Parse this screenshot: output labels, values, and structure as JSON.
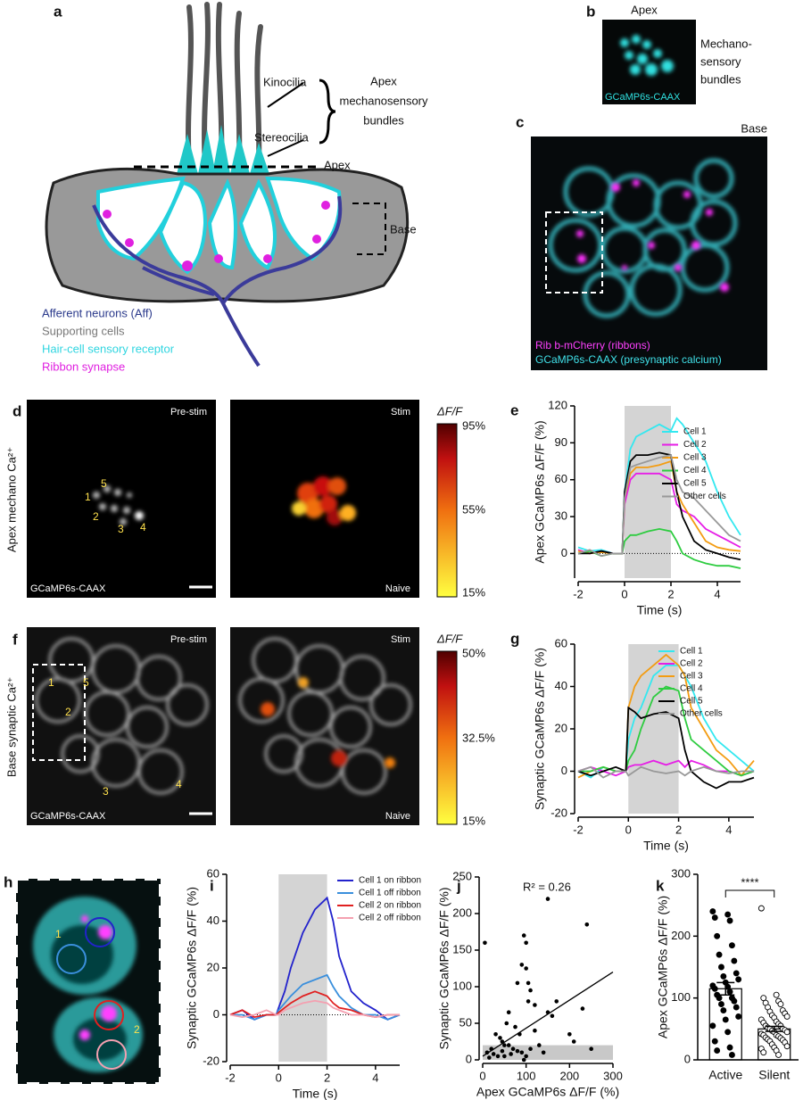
{
  "panels": {
    "a": {
      "label": "a",
      "kinocilia": "Kinocilia",
      "stereocilia": "Stereocilia",
      "bundles": [
        "Apex",
        "mechanosensory",
        "bundles"
      ],
      "apex": "Apex",
      "base": "Base",
      "legend": [
        "Afferent neurons (Aff)",
        "Supporting cells",
        "Hair-cell sensory receptor",
        "Ribbon synapse"
      ]
    },
    "b": {
      "label": "b",
      "apex": "Apex",
      "bundles": [
        "Mechano-",
        "sensory",
        "bundles"
      ],
      "stain": "GCaMP6s-CAAX"
    },
    "c": {
      "label": "c",
      "base": "Base",
      "stain1": "Rib b-mCherry (ribbons)",
      "stain2": "GCaMP6s-CAAX (presynaptic calcium)"
    },
    "d": {
      "label": "d",
      "side": "Apex mechano Ca²⁺",
      "pre": "Pre-stim",
      "stim": "Stim",
      "naive": "Naive",
      "stain": "GCaMP6s-CAAX",
      "cells": [
        "1",
        "2",
        "3",
        "4",
        "5"
      ],
      "colorbar": {
        "title": "ΔF/F",
        "labels": [
          "95%",
          "55%",
          "15%"
        ]
      }
    },
    "f": {
      "label": "f",
      "side": "Base synaptic Ca²⁺",
      "pre": "Pre-stim",
      "stim": "Stim",
      "naive": "Naive",
      "stain": "GCaMP6s-CAAX",
      "cells": [
        "1",
        "2",
        "3",
        "4",
        "5"
      ],
      "colorbar": {
        "title": "ΔF/F",
        "labels": [
          "50%",
          "32.5%",
          "15%"
        ]
      }
    },
    "h": {
      "label": "h",
      "cells": [
        "1",
        "2"
      ]
    }
  },
  "chart_data": [
    {
      "type": "line",
      "label": "e",
      "xlabel": "Time (s)",
      "ylabel": "Apex GCaMP6s ΔF/F (%)",
      "xlim": [
        -2,
        5
      ],
      "ylim": [
        -20,
        120
      ],
      "xticks": [
        -2,
        0,
        2,
        4
      ],
      "yticks": [
        0,
        30,
        60,
        90,
        120
      ],
      "stim": [
        0,
        2
      ],
      "reference_line": 0,
      "x": [
        -2,
        -1.5,
        -1,
        -0.5,
        -0.1,
        0,
        0.25,
        0.5,
        1,
        1.5,
        2,
        2.25,
        2.5,
        3,
        3.5,
        4,
        4.5,
        5
      ],
      "series": [
        {
          "name": "Cell 1",
          "color": "#33e8f0",
          "values": [
            5,
            2,
            3,
            0,
            0,
            50,
            85,
            95,
            100,
            105,
            100,
            110,
            105,
            90,
            75,
            50,
            30,
            15
          ]
        },
        {
          "name": "Cell 2",
          "color": "#e61ee6",
          "values": [
            3,
            0,
            2,
            0,
            0,
            40,
            60,
            65,
            65,
            65,
            60,
            40,
            35,
            30,
            20,
            15,
            10,
            5
          ]
        },
        {
          "name": "Cell 3",
          "color": "#f39c12",
          "values": [
            2,
            0,
            1,
            0,
            0,
            45,
            65,
            70,
            70,
            72,
            75,
            50,
            40,
            25,
            10,
            5,
            3,
            2
          ]
        },
        {
          "name": "Cell 4",
          "color": "#2ecc40",
          "values": [
            0,
            2,
            -2,
            0,
            0,
            10,
            15,
            15,
            18,
            20,
            18,
            10,
            0,
            -5,
            -8,
            -10,
            -10,
            -12
          ]
        },
        {
          "name": "Cell 5",
          "color": "#000000",
          "values": [
            0,
            0,
            2,
            0,
            0,
            50,
            75,
            80,
            80,
            82,
            80,
            50,
            30,
            10,
            3,
            0,
            -3,
            -5
          ]
        },
        {
          "name": "Other cells",
          "color": "#999999",
          "values": [
            0,
            3,
            -2,
            0,
            0,
            45,
            70,
            72,
            75,
            78,
            80,
            60,
            50,
            45,
            35,
            25,
            15,
            10
          ]
        }
      ]
    },
    {
      "type": "line",
      "label": "g",
      "xlabel": "Time (s)",
      "ylabel": "Synaptic GCaMP6s ΔF/F (%)",
      "xlim": [
        -2,
        5
      ],
      "ylim": [
        -20,
        60
      ],
      "xticks": [
        -2,
        0,
        2,
        4
      ],
      "yticks": [
        -20,
        0,
        20,
        40,
        60
      ],
      "stim": [
        0,
        2
      ],
      "x": [
        -2,
        -1.5,
        -1,
        -0.5,
        -0.1,
        0,
        0.25,
        0.5,
        1,
        1.5,
        2,
        2.25,
        2.5,
        3,
        3.5,
        4,
        4.5,
        5
      ],
      "series": [
        {
          "name": "Cell 1",
          "color": "#33e8f0",
          "values": [
            0,
            -3,
            2,
            0,
            0,
            15,
            25,
            30,
            45,
            50,
            50,
            45,
            40,
            25,
            15,
            10,
            5,
            0
          ]
        },
        {
          "name": "Cell 2",
          "color": "#e61ee6",
          "values": [
            0,
            2,
            0,
            -2,
            0,
            2,
            3,
            3,
            5,
            3,
            5,
            2,
            5,
            3,
            0,
            0,
            -2,
            0
          ]
        },
        {
          "name": "Cell 3",
          "color": "#f39c12",
          "values": [
            -3,
            0,
            2,
            0,
            0,
            30,
            40,
            45,
            50,
            55,
            50,
            45,
            30,
            20,
            10,
            5,
            -2,
            5
          ]
        },
        {
          "name": "Cell 4",
          "color": "#2ecc40",
          "values": [
            0,
            0,
            2,
            0,
            0,
            5,
            10,
            20,
            35,
            40,
            38,
            25,
            15,
            10,
            5,
            0,
            -2,
            0
          ]
        },
        {
          "name": "Cell 5",
          "color": "#000000",
          "values": [
            0,
            -2,
            0,
            2,
            0,
            30,
            28,
            25,
            27,
            28,
            25,
            10,
            0,
            -5,
            -8,
            -5,
            -5,
            -3
          ]
        },
        {
          "name": "Other cells",
          "color": "#999999",
          "values": [
            0,
            2,
            -3,
            0,
            0,
            -2,
            0,
            2,
            0,
            -1,
            0,
            -2,
            0,
            2,
            0,
            -1,
            0,
            0
          ]
        }
      ]
    },
    {
      "type": "line",
      "label": "i",
      "xlabel": "Time (s)",
      "ylabel": "Synaptic GCaMP6s ΔF/F (%)",
      "xlim": [
        -2,
        5
      ],
      "ylim": [
        -20,
        60
      ],
      "xticks": [
        -2,
        0,
        2,
        4
      ],
      "yticks": [
        -20,
        0,
        20,
        40,
        60
      ],
      "stim": [
        0,
        2
      ],
      "reference_line": 0,
      "x": [
        -2,
        -1.5,
        -1,
        -0.5,
        -0.1,
        0,
        0.25,
        0.5,
        1,
        1.5,
        2,
        2.25,
        2.5,
        3,
        3.5,
        4,
        4.5,
        5
      ],
      "series": [
        {
          "name": "Cell 1 on ribbon",
          "color": "#2222cc",
          "values": [
            0,
            2,
            -2,
            0,
            0,
            3,
            10,
            20,
            35,
            45,
            50,
            40,
            25,
            10,
            5,
            2,
            -2,
            0
          ]
        },
        {
          "name": "Cell 1 off ribbon",
          "color": "#3a8fdc",
          "values": [
            0,
            0,
            -2,
            0,
            0,
            2,
            5,
            8,
            13,
            15,
            17,
            12,
            8,
            3,
            0,
            0,
            -2,
            0
          ]
        },
        {
          "name": "Cell 2 on ribbon",
          "color": "#e02020",
          "values": [
            0,
            2,
            -1,
            0,
            0,
            1,
            3,
            5,
            8,
            10,
            8,
            5,
            3,
            2,
            0,
            -1,
            0,
            0
          ]
        },
        {
          "name": "Cell 2 off ribbon",
          "color": "#f4a0b0",
          "values": [
            0,
            -1,
            0,
            2,
            0,
            0,
            2,
            3,
            5,
            6,
            5,
            3,
            2,
            0,
            0,
            -1,
            0,
            0
          ]
        }
      ]
    },
    {
      "type": "scatter",
      "label": "j",
      "xlabel": "Apex GCaMP6s ΔF/F (%)",
      "ylabel": "Synaptic GCaMP6s ΔF/F (%)",
      "annotation": "R² = 0.26",
      "xlim": [
        0,
        300
      ],
      "ylim": [
        0,
        250
      ],
      "xticks": [
        0,
        100,
        200,
        300
      ],
      "yticks": [
        0,
        50,
        100,
        150,
        200,
        250
      ],
      "band": [
        0,
        20
      ],
      "fit": {
        "x": [
          0,
          300
        ],
        "y": [
          5,
          120
        ]
      },
      "color": "#000000",
      "x": [
        5,
        150,
        240,
        95,
        100,
        90,
        100,
        105,
        80,
        110,
        105,
        120,
        170,
        150,
        230,
        160,
        60,
        55,
        30,
        40,
        45,
        50,
        60,
        70,
        80,
        20,
        25,
        35,
        50,
        65,
        90,
        100,
        110,
        130,
        140,
        200,
        210,
        250,
        120,
        85,
        75,
        15,
        10,
        95,
        45
      ],
      "values": [
        160,
        220,
        185,
        170,
        160,
        130,
        125,
        105,
        105,
        95,
        80,
        75,
        80,
        65,
        70,
        60,
        65,
        50,
        35,
        30,
        25,
        20,
        20,
        15,
        12,
        15,
        8,
        5,
        5,
        8,
        10,
        5,
        15,
        20,
        10,
        35,
        25,
        15,
        40,
        35,
        45,
        3,
        10,
        0,
        12
      ]
    },
    {
      "type": "bar",
      "label": "k",
      "ylabel": "Apex GCaMP6s ΔF/F (%)",
      "ylim": [
        0,
        300
      ],
      "yticks": [
        0,
        100,
        200,
        300
      ],
      "categories": [
        "Active",
        "Silent"
      ],
      "values": [
        115,
        50
      ],
      "errors": [
        10,
        4
      ],
      "significance": "****",
      "points": [
        [
          240,
          235,
          230,
          225,
          200,
          185,
          170,
          160,
          150,
          140,
          135,
          130,
          125,
          120,
          118,
          115,
          110,
          105,
          100,
          100,
          95,
          90,
          85,
          80,
          70,
          65,
          55,
          45,
          30,
          20,
          15,
          8
        ],
        [
          245,
          105,
          100,
          95,
          92,
          90,
          85,
          80,
          78,
          75,
          72,
          70,
          68,
          65,
          62,
          60,
          58,
          55,
          55,
          52,
          50,
          50,
          48,
          47,
          45,
          45,
          42,
          40,
          40,
          38,
          36,
          35,
          33,
          32,
          30,
          28,
          25,
          22,
          20,
          18,
          15,
          12,
          8
        ]
      ]
    }
  ]
}
